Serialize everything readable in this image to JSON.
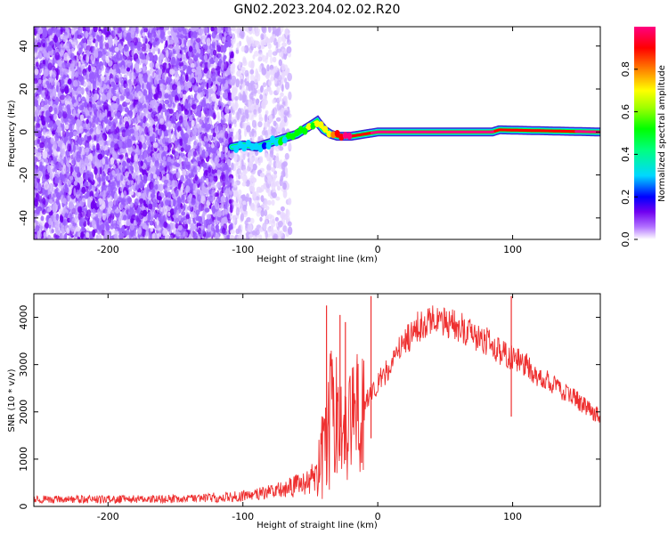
{
  "title": "GN02.2023.204.02.02.R20",
  "chart_data": [
    {
      "type": "heatmap",
      "xlabel": "Height of straight line (km)",
      "ylabel": "Frequency (Hz)",
      "xlim": [
        -255,
        165
      ],
      "ylim": [
        -50,
        49
      ],
      "x_ticks": [
        -200,
        -100,
        0,
        100
      ],
      "y_ticks": [
        -40,
        -20,
        0,
        20,
        40
      ],
      "grid": false,
      "colorbar": {
        "label": "Normalized spectral amplitude",
        "range": [
          0,
          1
        ],
        "ticks": [
          0.0,
          0.2,
          0.4,
          0.6,
          0.8
        ],
        "colormap": [
          "#ffffff",
          "#7000f0",
          "#0000ff",
          "#00d8ff",
          "#00ff00",
          "#ffff00",
          "#ff8000",
          "#ff0000",
          "#ff0080"
        ]
      },
      "regions": [
        {
          "name": "noise",
          "x_range": [
            -255,
            -108
          ],
          "freq_range": [
            -50,
            49
          ],
          "amplitude": 0.15
        },
        {
          "name": "faint-noise",
          "x_range": [
            -108,
            -65
          ],
          "freq_range": [
            -50,
            49
          ],
          "amplitude": 0.05
        }
      ],
      "trace": {
        "x": [
          -108,
          -100,
          -90,
          -80,
          -70,
          -60,
          -50,
          -45,
          -40,
          -35,
          -30,
          -25,
          -20,
          0,
          50,
          85,
          90,
          165
        ],
        "freq": [
          -7,
          -6,
          -7,
          -5,
          -3,
          -1,
          3,
          5,
          1,
          -1,
          -2,
          -2,
          -2,
          0,
          0,
          0,
          1,
          0
        ],
        "amplitude": [
          0.35,
          0.4,
          0.35,
          0.4,
          0.45,
          0.5,
          0.6,
          0.55,
          0.6,
          0.7,
          0.85,
          0.9,
          0.9,
          0.95,
          0.95,
          0.95,
          0.9,
          0.95
        ]
      }
    },
    {
      "type": "line",
      "xlabel": "Height of straight line (km)",
      "ylabel": "SNR (10 * v/v)",
      "xlim": [
        -255,
        165
      ],
      "ylim": [
        0,
        4500
      ],
      "x_ticks": [
        -200,
        -100,
        0,
        100
      ],
      "y_ticks": [
        0,
        1000,
        2000,
        3000,
        4000
      ],
      "grid": false,
      "series": [
        {
          "color": "#ee3030",
          "x": [
            -255,
            -200,
            -150,
            -110,
            -100,
            -90,
            -80,
            -70,
            -60,
            -50,
            -45,
            -40,
            -35,
            -30,
            -25,
            -20,
            -15,
            -10,
            -5,
            0,
            10,
            20,
            30,
            40,
            50,
            60,
            70,
            80,
            90,
            100,
            110,
            120,
            130,
            140,
            150,
            165
          ],
          "values": [
            150,
            150,
            160,
            200,
            220,
            250,
            300,
            350,
            450,
            550,
            700,
            1500,
            2100,
            1900,
            1600,
            1750,
            2000,
            2200,
            2400,
            2600,
            3000,
            3500,
            3800,
            3950,
            3900,
            3800,
            3650,
            3500,
            3300,
            3150,
            3000,
            2750,
            2600,
            2400,
            2200,
            1900
          ],
          "spikes": [
            {
              "x": -38,
              "value": 4250
            },
            {
              "x": -28,
              "value": 4050
            },
            {
              "x": -24,
              "value": 3900
            },
            {
              "x": -5,
              "value": 4450
            },
            {
              "x": 99,
              "value": 4450
            }
          ]
        }
      ]
    }
  ]
}
